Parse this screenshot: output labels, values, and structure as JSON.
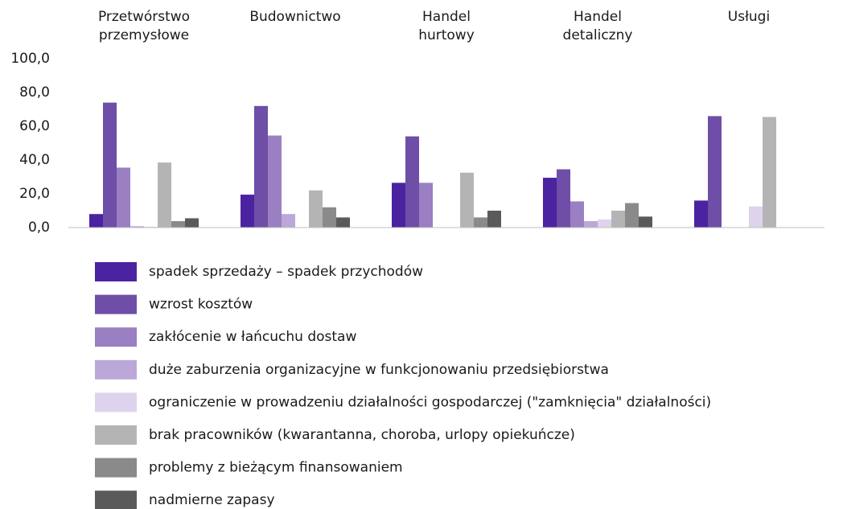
{
  "chart_data": {
    "type": "bar",
    "categories": [
      "Przetwórstwo\nprzemysłowe",
      "Budownictwo",
      "Handel\nhurtowy",
      "Handel\ndetaliczny",
      "Usługi"
    ],
    "series": [
      {
        "name": "spadek sprzedaży – spadek przychodów",
        "color": "#4b23a0",
        "values": [
          8,
          19.5,
          26.5,
          29.5,
          16
        ]
      },
      {
        "name": "wzrost kosztów",
        "color": "#6e4ea6",
        "values": [
          74,
          72,
          54,
          34.5,
          66
        ]
      },
      {
        "name": "zakłócenie w łańcuchu dostaw",
        "color": "#9a7fc2",
        "values": [
          35.5,
          54.5,
          26.5,
          15.5,
          0
        ]
      },
      {
        "name": "duże zaburzenia organizacyjne w funkcjonowaniu przedsiębiorstwa",
        "color": "#bba7d8",
        "values": [
          0.8,
          8,
          0,
          3.8,
          0
        ]
      },
      {
        "name": "ograniczenie w prowadzeniu działalności gospodarczej (\"zamknięcia\" działalności)",
        "color": "#ddd3ec",
        "values": [
          0.5,
          0,
          0,
          4.8,
          12.5
        ]
      },
      {
        "name": "brak pracowników (kwarantanna, choroba, urlopy opiekuńcze)",
        "color": "#b4b4b4",
        "values": [
          38.5,
          22,
          32.5,
          10,
          65.5
        ]
      },
      {
        "name": "problemy z bieżącym finansowaniem",
        "color": "#8a8a8a",
        "values": [
          3.8,
          12,
          6,
          14.5,
          0
        ]
      },
      {
        "name": "nadmierne zapasy",
        "color": "#5a5a5a",
        "values": [
          5.5,
          6,
          10,
          6.5,
          0
        ]
      }
    ],
    "ylim": [
      0,
      100
    ],
    "yticks": [
      {
        "value": 0,
        "label": "0,0"
      },
      {
        "value": 20,
        "label": "20,0"
      },
      {
        "value": 40,
        "label": "40,0"
      },
      {
        "value": 60,
        "label": "60,0"
      },
      {
        "value": 80,
        "label": "80,0"
      },
      {
        "value": 100,
        "label": "100,0"
      }
    ],
    "grid": false
  }
}
